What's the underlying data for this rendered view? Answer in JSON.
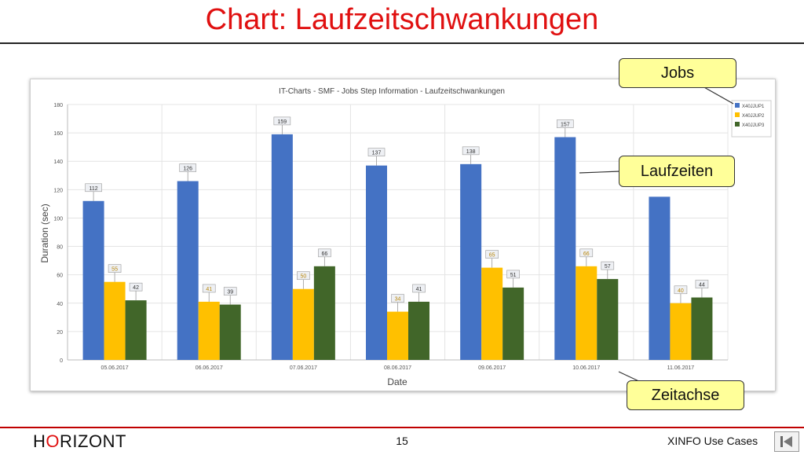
{
  "slide": {
    "title": "Chart: Laufzeitschwankungen",
    "footer": {
      "logo_h": "H",
      "logo_o": "O",
      "logo_rest": "RIZONT",
      "page_number": "15",
      "section": "XINFO Use Cases"
    }
  },
  "callouts": {
    "jobs": "Jobs",
    "laufzeiten": "Laufzeiten",
    "zeitachse": "Zeitachse"
  },
  "chart_data": {
    "type": "bar",
    "title": "IT-Charts - SMF - Jobs Step Information - Laufzeitschwankungen",
    "xlabel": "Date",
    "ylabel": "Duration (sec)",
    "ylim": [
      0,
      180
    ],
    "yticks": [
      0,
      20,
      40,
      60,
      80,
      100,
      120,
      140,
      160,
      180
    ],
    "grid": true,
    "legend_position": "top-right",
    "categories": [
      "05.06.2017",
      "06.06.2017",
      "07.06.2017",
      "08.06.2017",
      "09.06.2017",
      "10.06.2017",
      "11.06.2017"
    ],
    "series": [
      {
        "name": "X40JJUP1",
        "color": "#4472c4",
        "values": [
          112,
          126,
          159,
          137,
          138,
          157,
          115
        ],
        "labels": [
          "112",
          "126",
          "159",
          "137",
          "138",
          "157",
          ""
        ]
      },
      {
        "name": "X40JJUP2",
        "color": "#ffc000",
        "values": [
          55,
          41,
          50,
          34,
          65,
          66,
          40
        ],
        "labels": [
          "55",
          "41",
          "50",
          "34",
          "65",
          "66",
          "40"
        ]
      },
      {
        "name": "X40JJUP3",
        "color": "#416629",
        "values": [
          42,
          39,
          66,
          41,
          51,
          57,
          44
        ],
        "labels": [
          "42",
          "39",
          "66",
          "41",
          "51",
          "57",
          "44"
        ]
      }
    ]
  }
}
